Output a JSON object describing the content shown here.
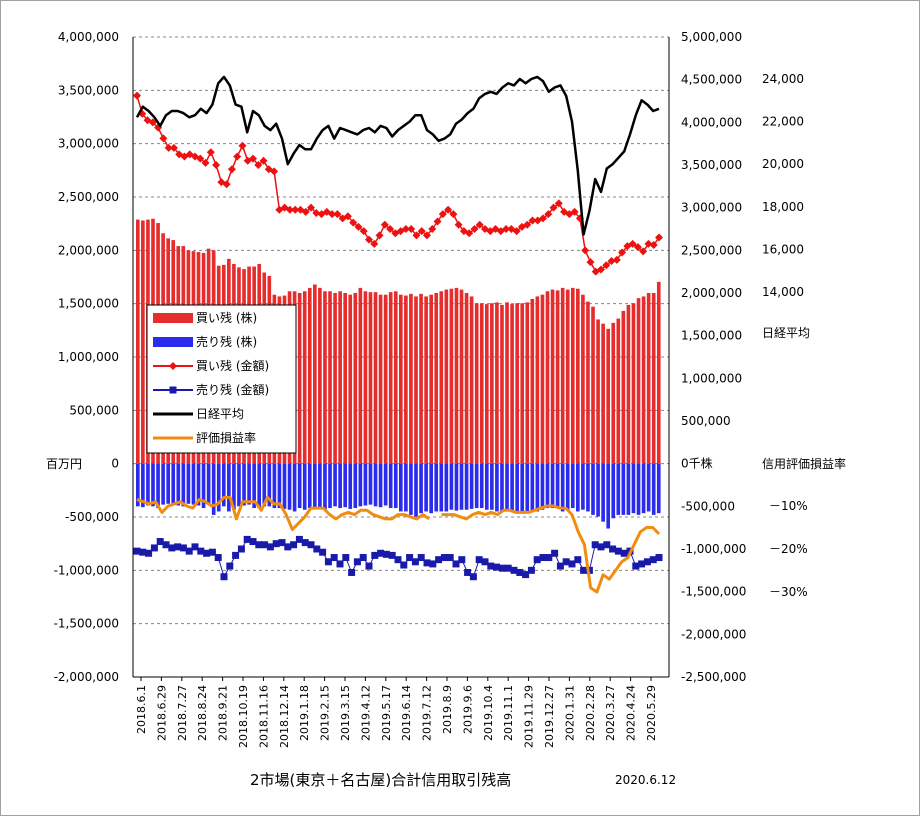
{
  "chart_data": {
    "type": "bar",
    "title": "2市場(東京＋名古屋)合計信用取引残高",
    "date_label": "2020.6.12",
    "left_axis": {
      "unit_label": "百万円",
      "range": [
        -2000000,
        4000000
      ],
      "ticks": [
        "4,000,000",
        "3,500,000",
        "3,000,000",
        "2,500,000",
        "2,000,000",
        "1,500,000",
        "1,000,000",
        "500,000",
        "0",
        "-500,000",
        "-1,000,000",
        "-1,500,000",
        "-2,000,000"
      ]
    },
    "right_axis_shares": {
      "unit_label": "0千株",
      "range": [
        -2500000,
        5000000
      ],
      "ticks": [
        "5,000,000",
        "4,500,000",
        "4,000,000",
        "3,500,000",
        "3,000,000",
        "2,500,000",
        "2,000,000",
        "1,500,000",
        "1,000,000",
        "500,000",
        "0千株",
        "-500,000",
        "-1,000,000",
        "-1,500,000",
        "-2,000,000",
        "-2,500,000"
      ]
    },
    "right_axis_nikkei": {
      "label": "日経平均",
      "ticks": [
        "24,000",
        "22,000",
        "20,000",
        "18,000",
        "16,000",
        "14,000"
      ]
    },
    "right_axis_pnl": {
      "label": "信用評価損益率",
      "ticks": [
        "－10%",
        "－20%",
        "－30%"
      ]
    },
    "x_tick_labels": [
      "2018.6.1",
      "2018.6.29",
      "2018.7.27",
      "2018.8.24",
      "2018.9.21",
      "2018.10.19",
      "2018.11.16",
      "2018.12.14",
      "2019.1.18",
      "2019.2.15",
      "2019.3.15",
      "2019.4.12",
      "2019.5.17",
      "2019.6.14",
      "2019.7.12",
      "2019.8.9",
      "2019.9.6",
      "2019.10.4",
      "2019.11.1",
      "2019.11.29",
      "2019.12.27",
      "2020.1.31",
      "2020.2.28",
      "2020.3.27",
      "2020.4.24",
      "2020.5.29"
    ],
    "legend": [
      "買い残 (株)",
      "売り残 (株)",
      "買い残 (金額)",
      "売り残 (金額)",
      "日経平均",
      "評価損益率"
    ],
    "colors": {
      "buy_shares": "#e52d2d",
      "sell_shares": "#2b2bee",
      "buy_amount": "#ee1111",
      "sell_amount": "#1a1aaa",
      "nikkei": "#000000",
      "pnl": "#f08c10",
      "grid": "#888888"
    },
    "series": [
      {
        "name": "買い残 (株)",
        "axis": "shares",
        "values": [
          2860000,
          2850000,
          2860000,
          2870000,
          2820000,
          2700000,
          2640000,
          2620000,
          2550000,
          2550000,
          2500000,
          2490000,
          2480000,
          2470000,
          2520000,
          2500000,
          2320000,
          2330000,
          2400000,
          2340000,
          2300000,
          2280000,
          2310000,
          2310000,
          2340000,
          2240000,
          2200000,
          1980000,
          1960000,
          1970000,
          2020000,
          2020000,
          2000000,
          2020000,
          2060000,
          2100000,
          2060000,
          2020000,
          2020000,
          2000000,
          2020000,
          2000000,
          1980000,
          2000000,
          2060000,
          2020000,
          2010000,
          2010000,
          1980000,
          1980000,
          2010000,
          2020000,
          1980000,
          1970000,
          1990000,
          1960000,
          1990000,
          1960000,
          1980000,
          2000000,
          2020000,
          2040000,
          2050000,
          2060000,
          2040000,
          2000000,
          1960000,
          1880000,
          1880000,
          1870000,
          1880000,
          1890000,
          1860000,
          1890000,
          1870000,
          1880000,
          1880000,
          1890000,
          1930000,
          1960000,
          1980000,
          2020000,
          2040000,
          2030000,
          2060000,
          2040000,
          2060000,
          2050000,
          1980000,
          1900000,
          1840000,
          1690000,
          1640000,
          1580000,
          1650000,
          1700000,
          1790000,
          1860000,
          1880000,
          1940000,
          1960000,
          2000000,
          2000000,
          2130000
        ],
        "note": "weekly"
      },
      {
        "name": "売り残 (株)",
        "axis": "shares",
        "values": [
          -500000,
          -510000,
          -490000,
          -500000,
          -520000,
          -480000,
          -470000,
          -480000,
          -490000,
          -500000,
          -470000,
          -480000,
          -490000,
          -520000,
          -480000,
          -600000,
          -560000,
          -500000,
          -560000,
          -540000,
          -500000,
          -490000,
          -480000,
          -520000,
          -520000,
          -500000,
          -500000,
          -520000,
          -520000,
          -530000,
          -540000,
          -560000,
          -520000,
          -540000,
          -520000,
          -520000,
          -530000,
          -540000,
          -520000,
          -500000,
          -520000,
          -510000,
          -530000,
          -520000,
          -500000,
          -490000,
          -480000,
          -500000,
          -510000,
          -490000,
          -520000,
          -520000,
          -560000,
          -560000,
          -600000,
          -620000,
          -580000,
          -560000,
          -580000,
          -560000,
          -560000,
          -560000,
          -540000,
          -550000,
          -540000,
          -540000,
          -530000,
          -520000,
          -520000,
          -540000,
          -540000,
          -560000,
          -560000,
          -540000,
          -560000,
          -560000,
          -560000,
          -580000,
          -560000,
          -560000,
          -540000,
          -520000,
          -520000,
          -520000,
          -560000,
          -540000,
          -520000,
          -560000,
          -540000,
          -560000,
          -600000,
          -620000,
          -680000,
          -760000,
          -640000,
          -600000,
          -600000,
          -600000,
          -580000,
          -600000,
          -580000,
          -560000,
          -600000,
          -580000
        ]
      },
      {
        "name": "買い残 (金額)",
        "axis": "yen",
        "values": [
          3450000,
          3280000,
          3220000,
          3200000,
          3150000,
          3050000,
          2960000,
          2960000,
          2900000,
          2880000,
          2900000,
          2880000,
          2860000,
          2820000,
          2920000,
          2800000,
          2640000,
          2620000,
          2760000,
          2880000,
          2980000,
          2840000,
          2860000,
          2800000,
          2840000,
          2760000,
          2740000,
          2380000,
          2400000,
          2380000,
          2380000,
          2380000,
          2360000,
          2400000,
          2350000,
          2340000,
          2360000,
          2340000,
          2340000,
          2300000,
          2320000,
          2260000,
          2220000,
          2180000,
          2100000,
          2060000,
          2140000,
          2240000,
          2200000,
          2160000,
          2180000,
          2200000,
          2200000,
          2140000,
          2180000,
          2140000,
          2200000,
          2270000,
          2340000,
          2380000,
          2340000,
          2240000,
          2180000,
          2160000,
          2200000,
          2240000,
          2200000,
          2180000,
          2200000,
          2180000,
          2200000,
          2200000,
          2180000,
          2220000,
          2240000,
          2280000,
          2280000,
          2300000,
          2340000,
          2400000,
          2440000,
          2360000,
          2340000,
          2360000,
          2300000,
          2000000,
          1890000,
          1800000,
          1820000,
          1860000,
          1900000,
          1910000,
          1980000,
          2040000,
          2060000,
          2030000,
          1990000,
          2060000,
          2050000,
          2120000
        ],
        "note": "weekly"
      },
      {
        "name": "売り残 (金額)",
        "axis": "yen",
        "values": [
          -820000,
          -830000,
          -840000,
          -790000,
          -730000,
          -760000,
          -790000,
          -780000,
          -790000,
          -820000,
          -780000,
          -820000,
          -840000,
          -830000,
          -880000,
          -1060000,
          -960000,
          -860000,
          -800000,
          -710000,
          -730000,
          -760000,
          -760000,
          -780000,
          -750000,
          -740000,
          -780000,
          -760000,
          -710000,
          -740000,
          -760000,
          -800000,
          -830000,
          -920000,
          -880000,
          -940000,
          -880000,
          -1020000,
          -920000,
          -880000,
          -960000,
          -860000,
          -840000,
          -850000,
          -860000,
          -900000,
          -950000,
          -880000,
          -920000,
          -880000,
          -930000,
          -940000,
          -900000,
          -880000,
          -880000,
          -940000,
          -900000,
          -1020000,
          -1060000,
          -900000,
          -920000,
          -960000,
          -970000,
          -980000,
          -980000,
          -1000000,
          -1020000,
          -1040000,
          -1000000,
          -900000,
          -880000,
          -880000,
          -840000,
          -960000,
          -920000,
          -940000,
          -900000,
          -1000000,
          -1000000,
          -760000,
          -780000,
          -760000,
          -800000,
          -820000,
          -840000,
          -820000,
          -960000,
          -940000,
          -920000,
          -900000,
          -880000
        ],
        "note": "weekly"
      },
      {
        "name": "日経平均",
        "axis": "nikkei",
        "values": [
          22200,
          22700,
          22500,
          22200,
          21800,
          22300,
          22500,
          22500,
          22400,
          22200,
          22300,
          22600,
          22400,
          22800,
          23800,
          24100,
          23700,
          22800,
          22700,
          21500,
          22500,
          22300,
          21800,
          21600,
          21900,
          21200,
          20000,
          20500,
          20900,
          20700,
          20700,
          21200,
          21600,
          21800,
          21200,
          21700,
          21600,
          21500,
          21400,
          21600,
          21700,
          21500,
          21800,
          21700,
          21300,
          21600,
          21800,
          22000,
          22300,
          22300,
          21600,
          21400,
          21100,
          21200,
          21400,
          21900,
          22100,
          22400,
          22600,
          23100,
          23300,
          23400,
          23300,
          23600,
          23800,
          23700,
          24000,
          23800,
          24000,
          24100,
          23900,
          23400,
          23600,
          23700,
          23200,
          22000,
          19700,
          16700,
          17800,
          19300,
          18700,
          19800,
          20000,
          20300,
          20600,
          21400,
          22300,
          23000,
          22800,
          22500,
          22600
        ]
      },
      {
        "name": "評価損益率",
        "axis": "pnl",
        "values": [
          -8.5,
          -9.0,
          -9.5,
          -9.0,
          -11.5,
          -10.0,
          -9.5,
          -9.0,
          -10.0,
          -10.5,
          -8.5,
          -9.0,
          -10.0,
          -9.5,
          -8.0,
          -8.0,
          -13.0,
          -9.0,
          -9.0,
          -9.0,
          -11.0,
          -8.0,
          -9.5,
          -9.5,
          -12.0,
          -15.5,
          -14.0,
          -12.5,
          -10.5,
          -10.5,
          -10.5,
          -12.0,
          -13.0,
          -12.0,
          -11.5,
          -12.0,
          -11.0,
          -11.0,
          -12.0,
          -12.5,
          -13.0,
          -13.0,
          -12.0,
          -12.0,
          -12.5,
          -13.0,
          -12.0,
          -13.0,
          null,
          -12.0,
          -12.0,
          -12.0,
          -12.5,
          -13.0,
          -12.0,
          -11.5,
          -12.0,
          -11.5,
          -12.0,
          -11.0,
          -11.0,
          -11.5,
          -11.5,
          -11.5,
          -11.0,
          -10.5,
          -10.0,
          -10.0,
          -10.5,
          -10.5,
          -12.0,
          -16.0,
          -19.0,
          -29.0,
          -30.0,
          -26.0,
          -27.0,
          -25.0,
          -23.0,
          -22.0,
          -19.0,
          -16.0,
          -15.0,
          -15.0,
          -16.5
        ]
      }
    ]
  }
}
